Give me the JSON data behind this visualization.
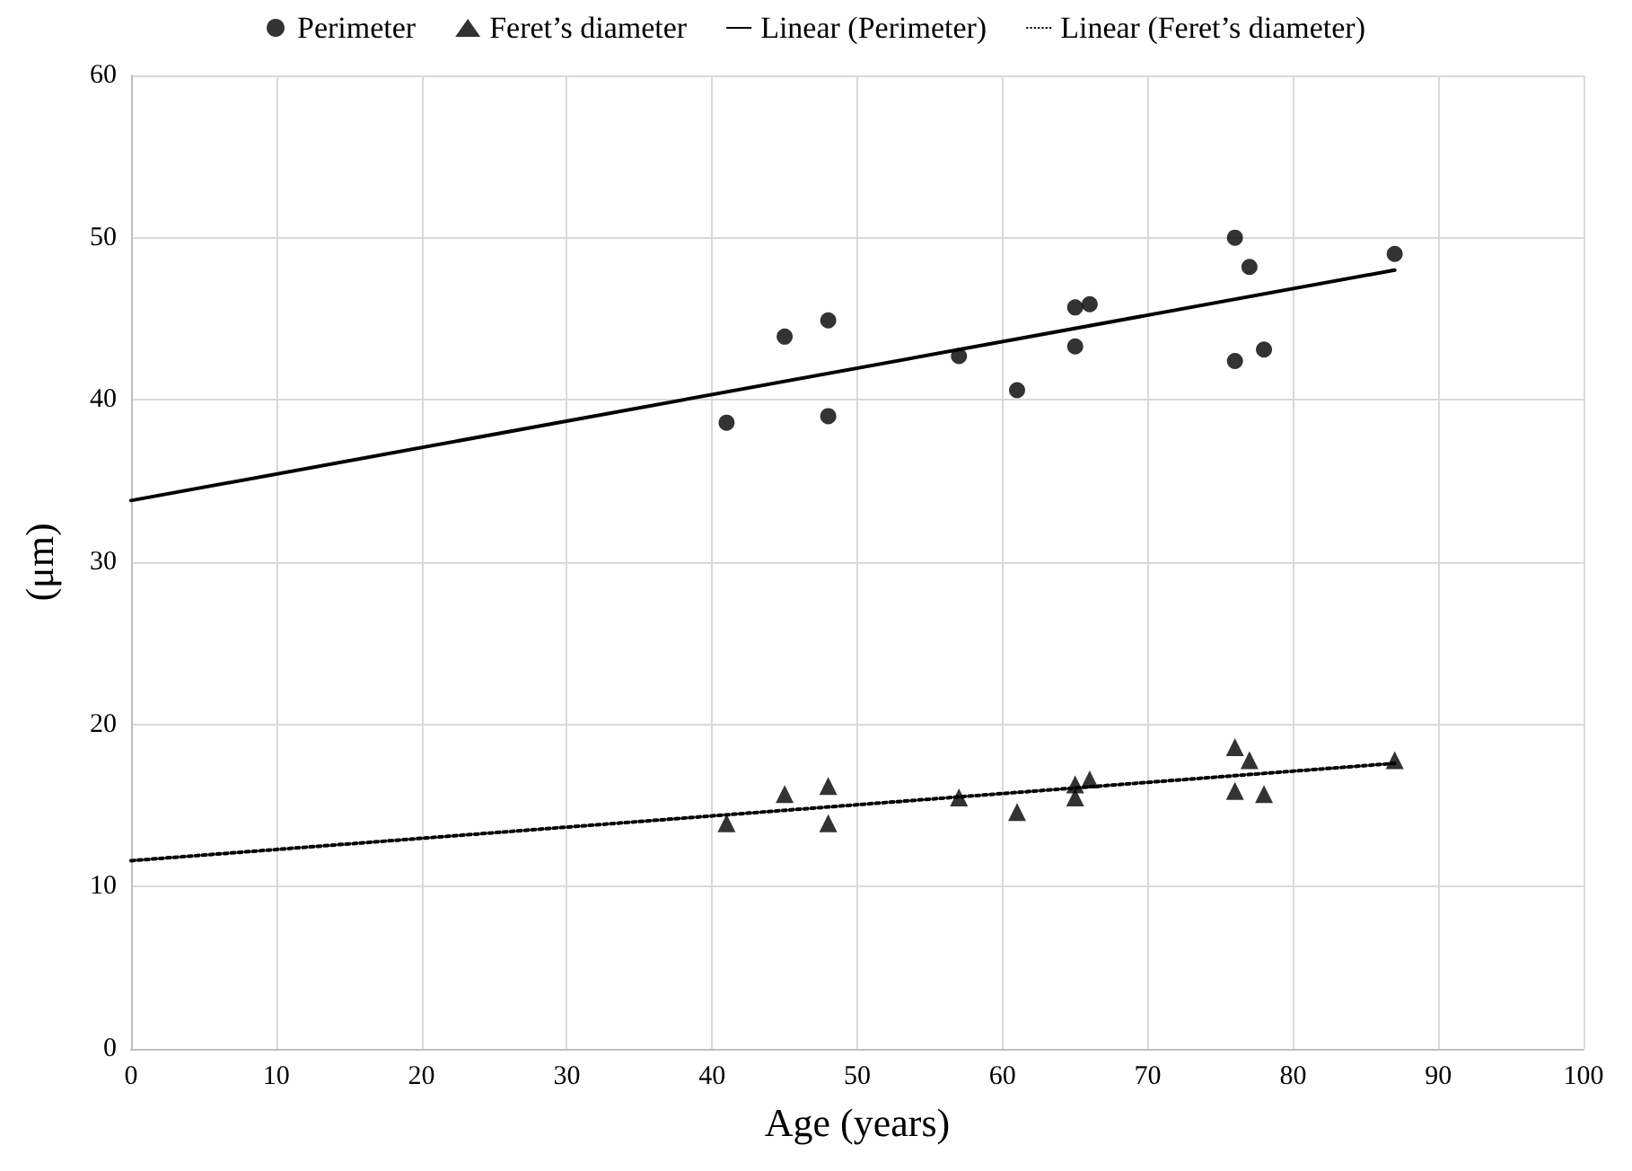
{
  "chart_data": {
    "type": "scatter",
    "xlabel": "Age (years)",
    "ylabel": "(μm)",
    "xlim": [
      0,
      100
    ],
    "xticks": [
      0,
      10,
      20,
      30,
      40,
      50,
      60,
      70,
      80,
      90,
      100
    ],
    "ylim": [
      0,
      60
    ],
    "yticks": [
      0,
      10,
      20,
      30,
      40,
      50,
      60
    ],
    "grid": true,
    "legend": "top",
    "series": [
      {
        "name": "Perimeter",
        "marker": "circle",
        "color": "#000000",
        "x": [
          41,
          45,
          48,
          48,
          57,
          61,
          65,
          65,
          66,
          76,
          76,
          77,
          78,
          87
        ],
        "values": [
          38.6,
          43.9,
          44.9,
          39.0,
          42.7,
          40.6,
          45.7,
          43.3,
          45.9,
          50.0,
          42.4,
          48.2,
          43.1,
          49.0
        ]
      },
      {
        "name": "Feret’s diameter",
        "marker": "triangle",
        "color": "#000000",
        "x": [
          41,
          45,
          48,
          48,
          57,
          61,
          65,
          65,
          66,
          76,
          76,
          77,
          78,
          87
        ],
        "values": [
          13.9,
          15.7,
          16.2,
          13.9,
          15.5,
          14.6,
          16.3,
          15.5,
          16.6,
          18.6,
          15.9,
          17.8,
          15.7,
          17.8
        ]
      },
      {
        "name": "Linear (Perimeter)",
        "type": "line",
        "line_style": "solid",
        "color": "#000000",
        "x": [
          0,
          87
        ],
        "values": [
          33.8,
          48.0
        ]
      },
      {
        "name": "Linear (Feret’s diameter)",
        "type": "line",
        "line_style": "dotted",
        "color": "#000000",
        "x": [
          0,
          87
        ],
        "values": [
          11.6,
          17.6
        ]
      }
    ]
  }
}
